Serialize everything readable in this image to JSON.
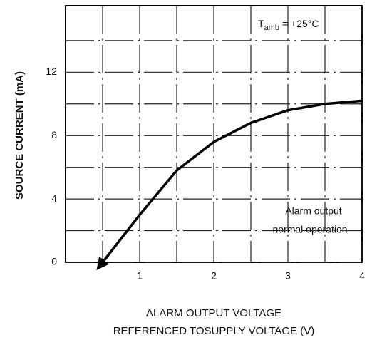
{
  "chart_data": {
    "type": "line",
    "ylabel": "SOURCE CURRENT (mA)",
    "xlabel": [
      "ALARM OUTPUT VOLTAGE",
      "REFERENCED TOSUPPLY VOLTAGE (V)"
    ],
    "annotations": {
      "temp": [
        "T",
        "amb",
        "= +25°C"
      ],
      "region": [
        "Alarm output",
        "normal operation"
      ]
    },
    "x": [
      0.5,
      0.8,
      1,
      1.25,
      1.5,
      2,
      2.5,
      3,
      3.5,
      4
    ],
    "series": [
      {
        "color": "#000000",
        "values": [
          0,
          1.8,
          3,
          4.4,
          5.8,
          7.6,
          8.8,
          9.6,
          10,
          10.2
        ]
      }
    ],
    "xlim": [
      0,
      4
    ],
    "ylim": [
      0,
      16.2
    ],
    "xticks": [
      1,
      2,
      3,
      4
    ],
    "yticks": [
      0,
      4,
      8,
      12
    ],
    "x_minor_ticks": [
      0.5,
      1.5,
      2.5,
      3.5
    ],
    "y_minor_ticks": [
      2,
      6,
      10,
      14
    ],
    "grid": true
  }
}
